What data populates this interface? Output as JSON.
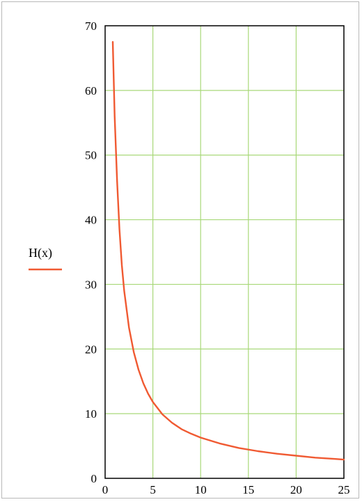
{
  "chart_data": {
    "type": "line",
    "xlim": [
      0,
      25
    ],
    "ylim": [
      0,
      70
    ],
    "x_ticks": [
      0,
      5,
      10,
      15,
      20,
      25
    ],
    "y_ticks": [
      0,
      10,
      20,
      30,
      40,
      50,
      60,
      70
    ],
    "grid": true,
    "legend_position": "left",
    "series": [
      {
        "name": "H(x)",
        "color": "#f05a32",
        "x": [
          0.8,
          1,
          1.25,
          1.5,
          1.75,
          2,
          2.5,
          3,
          3.5,
          4,
          4.5,
          5,
          6,
          7,
          8,
          9,
          10,
          12,
          14,
          16,
          18,
          20,
          22,
          24,
          25
        ],
        "y": [
          67.5,
          56,
          46,
          38.5,
          33,
          29,
          23.3,
          19.5,
          16.8,
          14.7,
          13.1,
          11.8,
          9.9,
          8.6,
          7.6,
          6.9,
          6.3,
          5.4,
          4.7,
          4.2,
          3.8,
          3.5,
          3.2,
          3.0,
          2.9
        ]
      }
    ]
  },
  "legend": {
    "label": "H(x)"
  }
}
